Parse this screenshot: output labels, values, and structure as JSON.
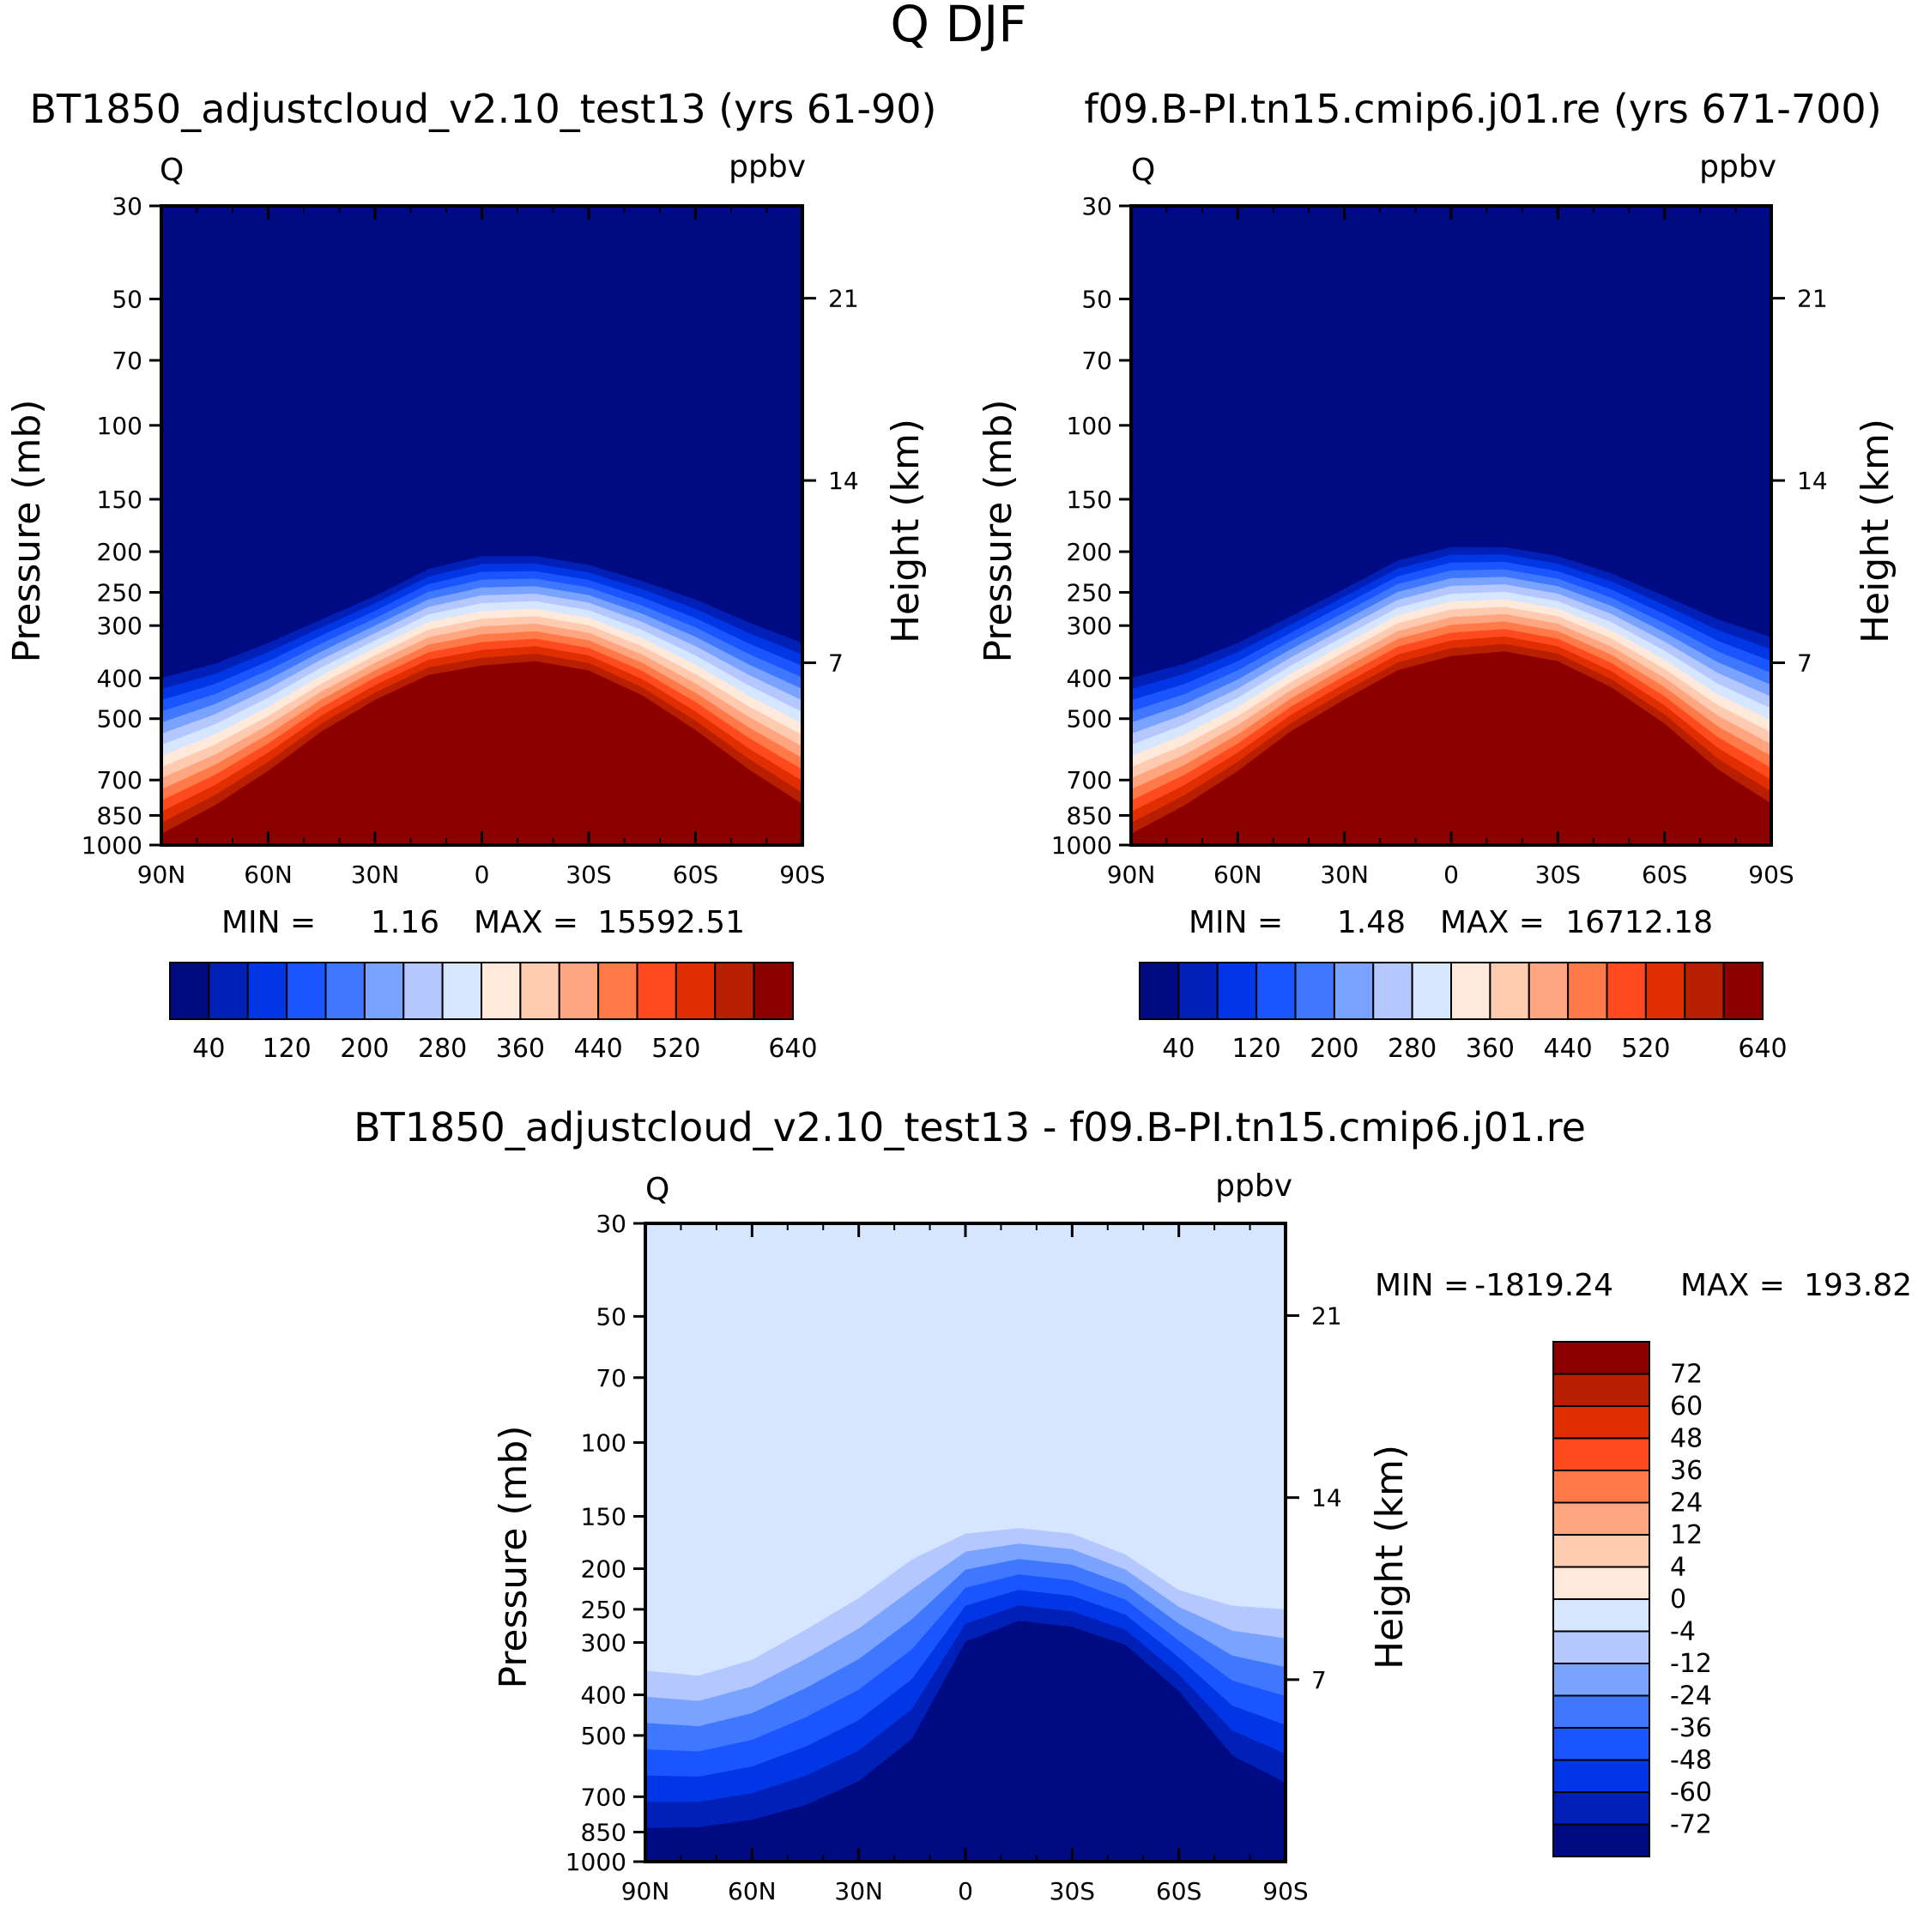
{
  "main_title": "Q DJF",
  "colors": {
    "abs_scale": [
      "#000a82",
      "#0020b8",
      "#0036e6",
      "#1a55ff",
      "#3f78ff",
      "#7aa2ff",
      "#b4c8ff",
      "#d6e6ff",
      "#ffe9da",
      "#ffcbb0",
      "#ffa57f",
      "#ff7a48",
      "#ff4a1e",
      "#e12e00",
      "#b81e00",
      "#8c0000"
    ],
    "diff_scale": [
      "#8c0000",
      "#b81e00",
      "#e12e00",
      "#ff4a1e",
      "#ff7a48",
      "#ffa57f",
      "#ffcbb0",
      "#ffe9da",
      "#d6e6ff",
      "#b4c8ff",
      "#7aa2ff",
      "#3f78ff",
      "#1a55ff",
      "#0036e6",
      "#0020b8",
      "#000a82"
    ],
    "frame": "#000000"
  },
  "chart_data": [
    {
      "type": "heatmap",
      "name": "panel-test",
      "title": "BT1850_adjustcloud_v2.10_test13 (yrs 61-90)",
      "corner_left": "Q",
      "corner_right": "ppbv",
      "ylabel": "Pressure (mb)",
      "ylabel2": "Height (km)",
      "x_ticks": [
        "90N",
        "60N",
        "30N",
        "0",
        "30S",
        "60S",
        "90S"
      ],
      "x_range": [
        90,
        -90
      ],
      "y_ticks": [
        30,
        50,
        70,
        100,
        150,
        200,
        250,
        300,
        400,
        500,
        700,
        850,
        1000
      ],
      "y_tick_labels": [
        "30",
        "50",
        "70",
        "100",
        "150",
        "200",
        "250",
        "300",
        "400",
        "500",
        "700",
        "850",
        "1000"
      ],
      "y_range_mb": [
        30,
        1000
      ],
      "height_ticks_km": [
        21,
        14,
        7
      ],
      "height_tick_labels": [
        "21",
        "14",
        "7"
      ],
      "min_label": "MIN =",
      "min_value": "1.16",
      "max_label": "MAX =",
      "max_value": "15592.51",
      "colorbar_levels": [
        40,
        80,
        120,
        160,
        200,
        240,
        280,
        320,
        360,
        400,
        440,
        480,
        520,
        560,
        600,
        640
      ],
      "colorbar_labels": [
        "40",
        "120",
        "200",
        "280",
        "360",
        "440",
        "520",
        "640"
      ],
      "field_boundaries_lat": [
        90,
        75,
        60,
        45,
        30,
        15,
        0,
        -15,
        -30,
        -45,
        -60,
        -75,
        -90
      ],
      "field_boundary_top_mb": [
        400,
        370,
        330,
        290,
        255,
        220,
        205,
        205,
        215,
        235,
        260,
        295,
        330
      ],
      "field_core_top_mb": [
        1000,
        850,
        700,
        560,
        470,
        410,
        390,
        380,
        400,
        460,
        560,
        700,
        850
      ]
    },
    {
      "type": "heatmap",
      "name": "panel-control",
      "title": "f09.B-PI.tn15.cmip6.j01.re (yrs 671-700)",
      "corner_left": "Q",
      "corner_right": "ppbv",
      "ylabel": "Pressure (mb)",
      "ylabel2": "Height (km)",
      "x_ticks": [
        "90N",
        "60N",
        "30N",
        "0",
        "30S",
        "60S",
        "90S"
      ],
      "x_range": [
        90,
        -90
      ],
      "y_ticks": [
        30,
        50,
        70,
        100,
        150,
        200,
        250,
        300,
        400,
        500,
        700,
        850,
        1000
      ],
      "y_tick_labels": [
        "30",
        "50",
        "70",
        "100",
        "150",
        "200",
        "250",
        "300",
        "400",
        "500",
        "700",
        "850",
        "1000"
      ],
      "y_range_mb": [
        30,
        1000
      ],
      "height_ticks_km": [
        21,
        14,
        7
      ],
      "height_tick_labels": [
        "21",
        "14",
        "7"
      ],
      "min_label": "MIN =",
      "min_value": "1.48",
      "max_label": "MAX =",
      "max_value": "16712.18",
      "colorbar_levels": [
        40,
        80,
        120,
        160,
        200,
        240,
        280,
        320,
        360,
        400,
        440,
        480,
        520,
        560,
        600,
        640
      ],
      "colorbar_labels": [
        "40",
        "120",
        "200",
        "280",
        "360",
        "440",
        "520",
        "640"
      ],
      "field_boundaries_lat": [
        90,
        75,
        60,
        45,
        30,
        15,
        0,
        -15,
        -30,
        -45,
        -60,
        -75,
        -90
      ],
      "field_boundary_top_mb": [
        400,
        370,
        330,
        285,
        245,
        210,
        195,
        195,
        205,
        225,
        255,
        290,
        320
      ],
      "field_core_top_mb": [
        1000,
        850,
        700,
        560,
        470,
        400,
        370,
        360,
        380,
        440,
        540,
        700,
        850
      ]
    },
    {
      "type": "heatmap",
      "name": "panel-difference",
      "title": "BT1850_adjustcloud_v2.10_test13 - f09.B-PI.tn15.cmip6.j01.re",
      "corner_left": "Q",
      "corner_right": "ppbv",
      "ylabel": "Pressure (mb)",
      "ylabel2": "Height (km)",
      "x_ticks": [
        "90N",
        "60N",
        "30N",
        "0",
        "30S",
        "60S",
        "90S"
      ],
      "x_range": [
        90,
        -90
      ],
      "y_ticks": [
        30,
        50,
        70,
        100,
        150,
        200,
        250,
        300,
        400,
        500,
        700,
        850,
        1000
      ],
      "y_tick_labels": [
        "30",
        "50",
        "70",
        "100",
        "150",
        "200",
        "250",
        "300",
        "400",
        "500",
        "700",
        "850",
        "1000"
      ],
      "y_range_mb": [
        30,
        1000
      ],
      "height_ticks_km": [
        21,
        14,
        7
      ],
      "height_tick_labels": [
        "21",
        "14",
        "7"
      ],
      "min_label": "MIN =",
      "min_value": "-1819.24",
      "max_label": "MAX =",
      "max_value": "193.82",
      "colorbar_levels": [
        72,
        60,
        48,
        36,
        24,
        12,
        4,
        0,
        -4,
        -12,
        -24,
        -36,
        -48,
        -60,
        -72
      ],
      "colorbar_labels": [
        "72",
        "60",
        "48",
        "36",
        "24",
        "12",
        "4",
        "0",
        "-4",
        "-12",
        "-24",
        "-36",
        "-48",
        "-60",
        "-72"
      ],
      "field_boundaries_lat": [
        90,
        75,
        60,
        45,
        30,
        15,
        0,
        -15,
        -30,
        -45,
        -60,
        -75,
        -90
      ],
      "field_boundary_top_mb": [
        350,
        360,
        330,
        280,
        235,
        190,
        165,
        160,
        165,
        185,
        225,
        245,
        250
      ],
      "field_core_top_mb": [
        960,
        950,
        920,
        860,
        760,
        600,
        330,
        290,
        300,
        330,
        430,
        640,
        760
      ]
    }
  ]
}
